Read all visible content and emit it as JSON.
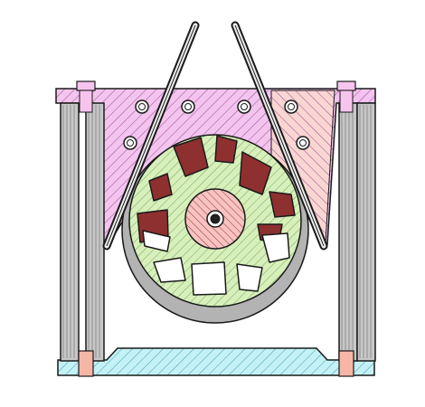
{
  "drawing": {
    "kind": "mechanical cross-section",
    "colors": {
      "background": "#ffffff",
      "outline": "#1a1a1a",
      "top_plate": "#f3c4ee",
      "top_plate_hatch": "#9a4a93",
      "top_plate_right": "#fad6d2",
      "wheel_hub_ring": "#d7f0bb",
      "wheel_hatch": "#7aa05f",
      "hub_core": "#f8c3c1",
      "pocket_dark": "#8e3030",
      "pocket_light": "#ffffff",
      "rim": "#b3b3b3",
      "base": "#c3f1f6",
      "base_hatch": "#4a9aa8",
      "post": "#c7c7c7",
      "post_inner": "#8f8f8f",
      "bolt_head": "#f7c4ee",
      "nut": "#f6b6a6",
      "arm": "#ededed"
    },
    "icons": [
      "bolt-hole-icon",
      "hub-axle-icon"
    ]
  }
}
